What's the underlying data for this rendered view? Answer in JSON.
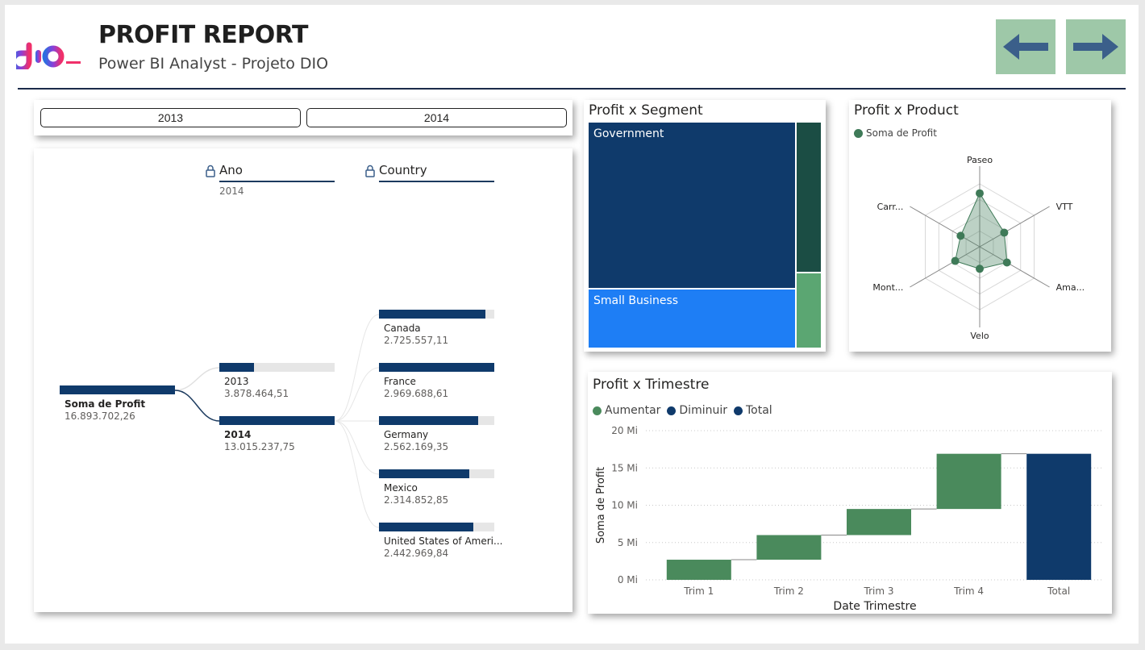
{
  "header": {
    "title": "PROFIT REPORT",
    "subtitle": "Power BI Analyst - Projeto DIO",
    "logo_icon": "dio-logo",
    "nav_prev_icon": "arrow-left-icon",
    "nav_next_icon": "arrow-right-icon",
    "accent": "#9ec8a8"
  },
  "slicer": {
    "options": [
      "2013",
      "2014"
    ]
  },
  "decomposition": {
    "levels": [
      {
        "label": "Ano",
        "selected": "2014"
      },
      {
        "label": "Country",
        "selected": ""
      }
    ],
    "root": {
      "label": "Soma de Profit",
      "value": "16.893.702,26"
    },
    "years": [
      {
        "label": "2013",
        "value": "3.878.464,51",
        "fraction": 0.3
      },
      {
        "label": "2014",
        "value": "13.015.237,75",
        "fraction": 1.0
      }
    ],
    "countries": [
      {
        "label": "Canada",
        "value": "2.725.557,11",
        "fraction": 0.92
      },
      {
        "label": "France",
        "value": "2.969.688,61",
        "fraction": 1.0
      },
      {
        "label": "Germany",
        "value": "2.562.169,35",
        "fraction": 0.86
      },
      {
        "label": "Mexico",
        "value": "2.314.852,85",
        "fraction": 0.78
      },
      {
        "label": "United States of Ameri...",
        "value": "2.442.969,84",
        "fraction": 0.82
      }
    ]
  },
  "segment": {
    "title": "Profit x Segment",
    "cells": [
      {
        "label": "Government",
        "color": "#0f3a6b"
      },
      {
        "label": "Small Business",
        "color": "#1e7ef5"
      },
      {
        "label": "",
        "color": "#1b4d44"
      },
      {
        "label": "",
        "color": "#5ba672"
      }
    ]
  },
  "product": {
    "title": "Profit x Product",
    "legend": "Soma de Profit",
    "color": "#3f7a58",
    "axes": [
      "Paseo",
      "VTT",
      "Ama...",
      "Velo",
      "Mont...",
      "Carr..."
    ],
    "values": [
      0.85,
      0.45,
      0.5,
      0.35,
      0.45,
      0.35
    ]
  },
  "chart_data": {
    "type": "waterfall",
    "title": "Profit x Trimestre",
    "xlabel": "Date Trimestre",
    "ylabel": "Soma de Profit",
    "legend": [
      {
        "label": "Aumentar",
        "color": "#4a8a5c"
      },
      {
        "label": "Diminuir",
        "color": "#0f3a6b"
      },
      {
        "label": "Total",
        "color": "#0f3a6b"
      }
    ],
    "categories": [
      "Trim 1",
      "Trim 2",
      "Trim 3",
      "Trim 4",
      "Total"
    ],
    "values": [
      2.7,
      3.3,
      3.5,
      7.4,
      16.9
    ],
    "yticks": [
      "0 Mi",
      "5 Mi",
      "10 Mi",
      "15 Mi",
      "20 Mi"
    ],
    "ylim": [
      0,
      20
    ]
  }
}
